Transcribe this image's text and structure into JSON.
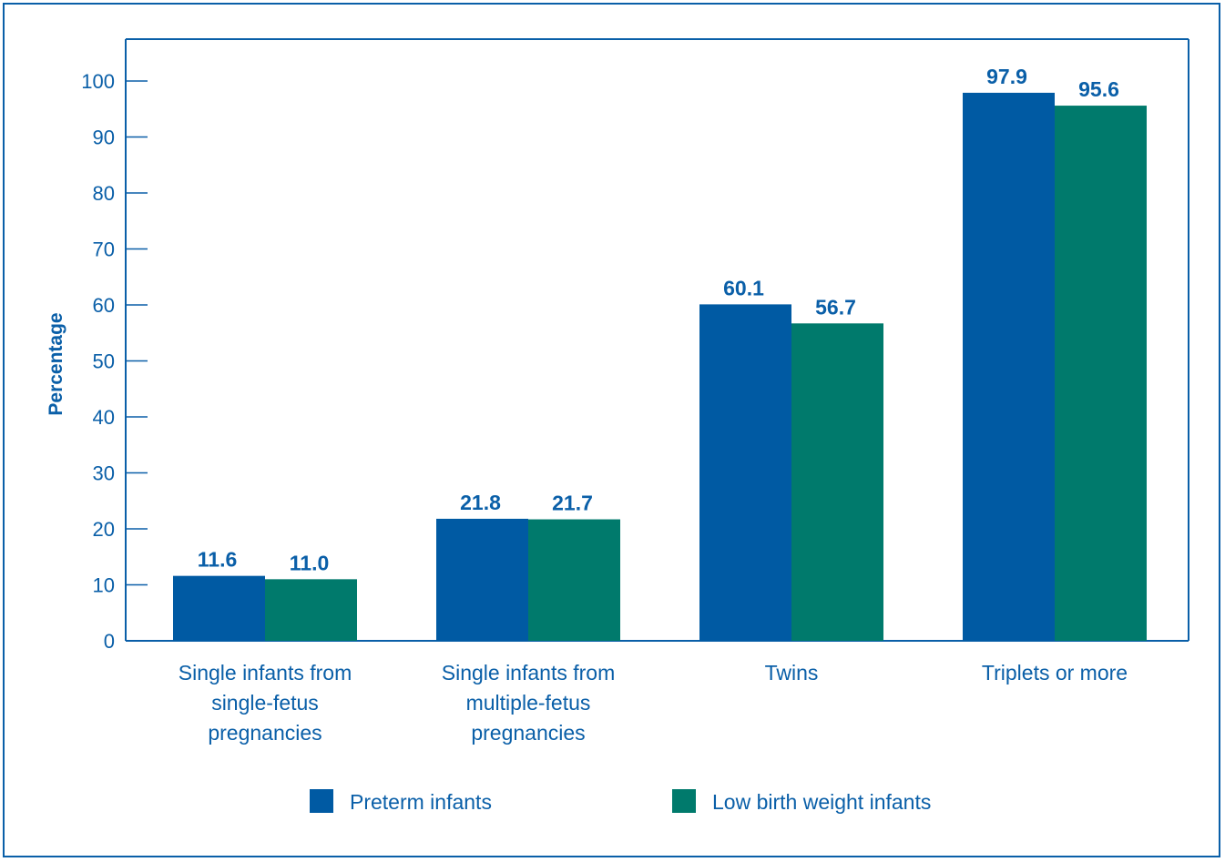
{
  "chart_data": {
    "type": "bar",
    "title": "",
    "xlabel": "",
    "ylabel": "Percentage",
    "ylim": [
      0,
      100
    ],
    "yticks": [
      0,
      10,
      20,
      30,
      40,
      50,
      60,
      70,
      80,
      90,
      100
    ],
    "grid": false,
    "legend_position": "bottom",
    "categories": [
      [
        "Single infants from",
        "single-fetus",
        "pregnancies"
      ],
      [
        "Single infants from",
        "multiple-fetus",
        "pregnancies"
      ],
      [
        "Twins"
      ],
      [
        "Triplets or more"
      ]
    ],
    "series": [
      {
        "name": "Preterm infants",
        "color": "#005aa3",
        "values": [
          11.6,
          21.8,
          60.1,
          97.9
        ],
        "labels": [
          "11.6",
          "21.8",
          "60.1",
          "97.9"
        ]
      },
      {
        "name": "Low birth weight infants",
        "color": "#007a6c",
        "values": [
          11.0,
          21.7,
          56.7,
          95.6
        ],
        "labels": [
          "11.0",
          "21.7",
          "56.7",
          "95.6"
        ]
      }
    ],
    "axis_color": "#0a5fa8"
  }
}
